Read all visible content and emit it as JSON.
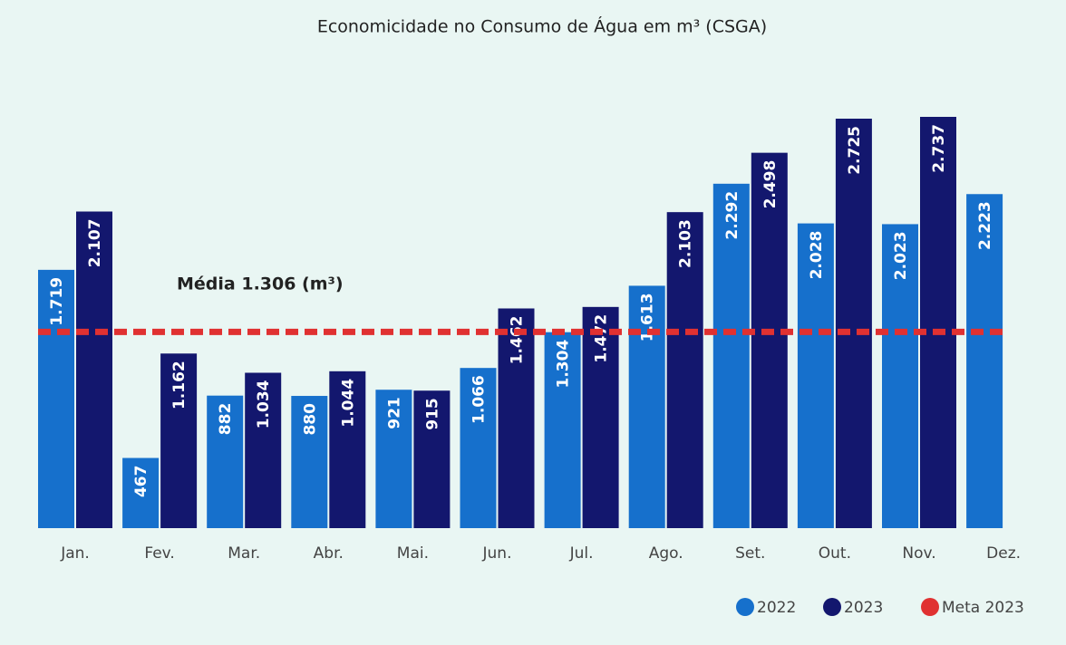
{
  "chart_data": {
    "type": "bar",
    "title": "Economicidade no Consumo de Água em m³ (CSGA)",
    "categories": [
      "Jan.",
      "Fev.",
      "Mar.",
      "Abr.",
      "Mai.",
      "Jun.",
      "Jul.",
      "Ago.",
      "Set.",
      "Out.",
      "Nov.",
      "Dez."
    ],
    "series": [
      {
        "name": "2022",
        "color": "#1670cc",
        "values": [
          1719,
          467,
          882,
          880,
          921,
          1066,
          1304,
          1613,
          2292,
          2028,
          2023,
          2223
        ],
        "value_labels": [
          "1.719",
          "467",
          "882",
          "880",
          "921",
          "1.066",
          "1.304",
          "1.613",
          "2.292",
          "2.028",
          "2.023",
          "2.223"
        ]
      },
      {
        "name": "2023",
        "color": "#13176e",
        "values": [
          2107,
          1162,
          1034,
          1044,
          915,
          1462,
          1472,
          2103,
          2498,
          2725,
          2737,
          null
        ],
        "value_labels": [
          "2.107",
          "1.162",
          "1.034",
          "1.044",
          "915",
          "1.462",
          "1.472",
          "2.103",
          "2.498",
          "2.725",
          "2.737",
          null
        ]
      }
    ],
    "reference_line": {
      "name": "Meta 2023",
      "value": 1306,
      "color": "#e03131"
    },
    "annotation": "Média 1.306 (m³)",
    "legend": "bottom-right"
  }
}
